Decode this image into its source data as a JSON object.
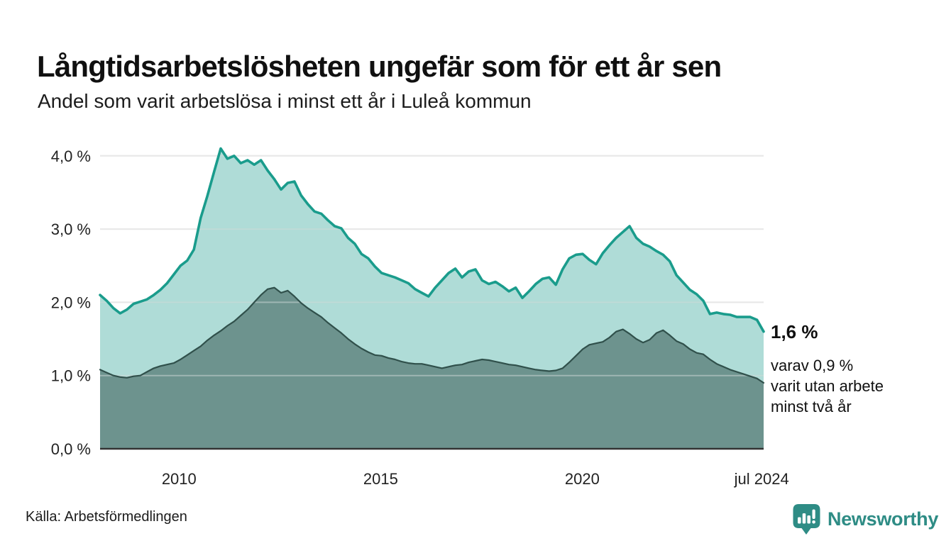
{
  "header": {
    "title": "Långtidsarbetslösheten ungefär som för ett år sen",
    "subtitle": "Andel som varit arbetslösa i minst ett år i Luleå kommun"
  },
  "chart_data": {
    "type": "area",
    "title": "Långtidsarbetslösheten ungefär som för ett år sen",
    "subtitle": "Andel som varit arbetslösa i minst ett år i Luleå kommun",
    "x_domain": [
      2008.04,
      2024.5
    ],
    "ylim": [
      0,
      4.3
    ],
    "grid": true,
    "yticks": [
      {
        "v": 0,
        "label": "0,0 %"
      },
      {
        "v": 1,
        "label": "1,0 %"
      },
      {
        "v": 2,
        "label": "2,0 %"
      },
      {
        "v": 3,
        "label": "3,0 %"
      },
      {
        "v": 4,
        "label": "4,0 %"
      }
    ],
    "xticks": [
      {
        "x": 2010,
        "label": "2010"
      },
      {
        "x": 2015,
        "label": "2015"
      },
      {
        "x": 2020,
        "label": "2020"
      },
      {
        "x": 2024.45,
        "label": "jul 2024"
      }
    ],
    "series": [
      {
        "id": "minst-ett-ar",
        "name": "minst ett år",
        "color": "#1a9c8c",
        "fill": "rgba(26,156,140,0.35)",
        "width": 3.6,
        "last_value_label": "1,6 %",
        "values": [
          2.1,
          2.02,
          1.92,
          1.85,
          1.9,
          1.98,
          2.01,
          2.04,
          2.1,
          2.17,
          2.26,
          2.38,
          2.5,
          2.57,
          2.72,
          3.15,
          3.45,
          3.78,
          4.1,
          3.96,
          4.0,
          3.9,
          3.94,
          3.88,
          3.94,
          3.8,
          3.68,
          3.54,
          3.63,
          3.65,
          3.46,
          3.34,
          3.24,
          3.21,
          3.12,
          3.04,
          3.01,
          2.88,
          2.8,
          2.66,
          2.6,
          2.49,
          2.4,
          2.37,
          2.34,
          2.3,
          2.26,
          2.18,
          2.13,
          2.08,
          2.2,
          2.3,
          2.4,
          2.46,
          2.34,
          2.42,
          2.45,
          2.3,
          2.25,
          2.28,
          2.22,
          2.15,
          2.2,
          2.06,
          2.15,
          2.25,
          2.32,
          2.34,
          2.24,
          2.45,
          2.6,
          2.65,
          2.66,
          2.58,
          2.52,
          2.67,
          2.78,
          2.88,
          2.96,
          3.04,
          2.88,
          2.8,
          2.76,
          2.7,
          2.65,
          2.56,
          2.37,
          2.27,
          2.17,
          2.11,
          2.02,
          1.84,
          1.86,
          1.84,
          1.83,
          1.8,
          1.8,
          1.8,
          1.76,
          1.6
        ]
      },
      {
        "id": "minst-tva-ar",
        "name": "minst två år",
        "color": "#30504b",
        "fill": "rgba(48,80,75,0.52)",
        "width": 2.2,
        "last_value_label": "0,9 %",
        "values": [
          1.08,
          1.04,
          1.0,
          0.98,
          0.97,
          0.99,
          1.0,
          1.05,
          1.1,
          1.13,
          1.15,
          1.17,
          1.22,
          1.28,
          1.34,
          1.4,
          1.48,
          1.55,
          1.61,
          1.68,
          1.74,
          1.82,
          1.9,
          2.0,
          2.1,
          2.18,
          2.2,
          2.13,
          2.16,
          2.08,
          1.99,
          1.92,
          1.86,
          1.8,
          1.72,
          1.65,
          1.58,
          1.5,
          1.43,
          1.37,
          1.32,
          1.28,
          1.27,
          1.24,
          1.22,
          1.19,
          1.17,
          1.16,
          1.16,
          1.14,
          1.12,
          1.1,
          1.12,
          1.14,
          1.15,
          1.18,
          1.2,
          1.22,
          1.21,
          1.19,
          1.17,
          1.15,
          1.14,
          1.12,
          1.1,
          1.08,
          1.07,
          1.06,
          1.07,
          1.1,
          1.18,
          1.27,
          1.36,
          1.42,
          1.44,
          1.46,
          1.52,
          1.6,
          1.63,
          1.57,
          1.5,
          1.45,
          1.49,
          1.58,
          1.62,
          1.55,
          1.47,
          1.43,
          1.36,
          1.31,
          1.29,
          1.22,
          1.16,
          1.12,
          1.08,
          1.05,
          1.02,
          0.99,
          0.96,
          0.9
        ]
      }
    ],
    "annotations": {
      "value_label": "1,6 %",
      "note": "varav 0,9 %\nvarit utan arbete\nminst två år"
    },
    "legend_position": "none"
  },
  "footer": {
    "source": "Källa: Arbetsförmedlingen",
    "brand": "Newsworthy"
  },
  "colors": {
    "accent_teal": "#1a9c8c",
    "fill_light": "rgba(26,156,140,0.35)",
    "dark_line": "#30504b",
    "fill_dark": "rgba(48,80,75,0.52)",
    "grid": "#d9d9d9",
    "grid_overlay": "rgba(255,255,255,0.4)",
    "axis": "#333333",
    "brand_teal": "#2e8c85",
    "text": "#101010"
  }
}
